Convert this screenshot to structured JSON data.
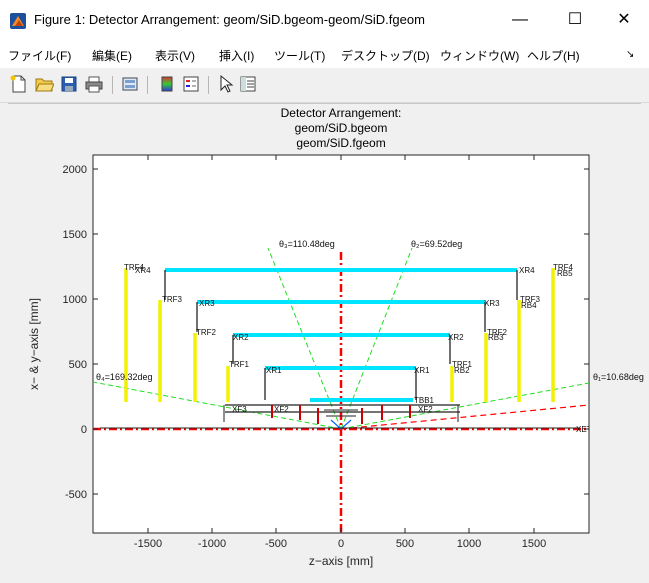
{
  "window": {
    "title": "Figure 1: Detector Arrangement: geom/SiD.bgeom-geom/SiD.fgeom",
    "minimize_glyph": "—",
    "maximize_glyph": "☐",
    "close_glyph": "✕"
  },
  "menu": [
    "ファイル(F)",
    "編集(E)",
    "表示(V)",
    "挿入(I)",
    "ツール(T)",
    "デスクトップ(D)",
    "ウィンドウ(W)",
    "ヘルプ(H)"
  ],
  "menu_overflow_glyph": "↘",
  "toolbar_icons": [
    "new-figure-icon",
    "open-folder-icon",
    "save-icon",
    "print-icon",
    "link-plot-icon",
    "colorbar-icon",
    "legend-icon",
    "pointer-icon",
    "property-inspector-icon"
  ],
  "plot": {
    "title_lines": [
      "Detector Arrangement:",
      "geom/SiD.bgeom",
      "geom/SiD.fgeom"
    ],
    "xlabel": "z−axis [mm]",
    "ylabel": "x− & y−axis [mm]",
    "xticks": [
      "-1500",
      "-1000",
      "-500",
      "0",
      "500",
      "1000",
      "1500"
    ],
    "yticks": [
      "2000",
      "1500",
      "1000",
      "500",
      "0",
      "-500"
    ],
    "angle_labels": {
      "theta3": "θ₃=110.48deg",
      "theta2": "θ₂=69.52deg",
      "theta4": "θ₄=169.32deg",
      "theta1": "θ₁=10.68deg"
    },
    "labels": {
      "xr4": "XR4",
      "xr3": "XR3",
      "xr2": "XR2",
      "xr1": "XR1",
      "trf4": "TRF4",
      "trf3": "TRF3",
      "trf2": "TRF2",
      "trf1": "TRF1",
      "tbb1": "TBB1",
      "rb5": "RB5",
      "rb4": "RB4",
      "rb3": "RB3",
      "rb2": "RB2",
      "xr2l": "XF2",
      "xr5l": "XF3",
      "xet": "XET"
    }
  },
  "colors": {
    "cyan": "#00e5ff",
    "yellow": "#f2f200",
    "red": "#ff0000",
    "green": "#22dd22",
    "dark": "#222222"
  }
}
